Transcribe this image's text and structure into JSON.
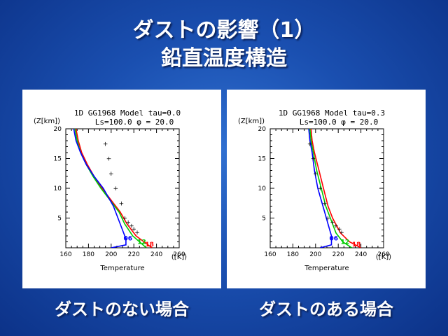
{
  "slide": {
    "title_line1": "ダストの影響（1）",
    "title_line2": "鉛直温度構造",
    "caption_left": "ダストのない場合",
    "caption_right": "ダストのある場合"
  },
  "colors": {
    "background": "#1a4fb0",
    "title": "#ffffff",
    "red": "#ff0000",
    "green": "#00cc00",
    "blue": "#0000ff",
    "marker": "#000000"
  },
  "chart_data": [
    {
      "type": "line",
      "title": "1D GG1968 Model tau=0.0",
      "subtitle": "Ls=100.0 φ = 20.0",
      "xlabel": "Temperature",
      "xunit": "([K])",
      "ylabel": "(Z[km])",
      "xlim": [
        160,
        260
      ],
      "ylim": [
        0,
        20
      ],
      "xticks": [
        "160",
        "180",
        "200",
        "220",
        "240",
        "260"
      ],
      "yticks": [
        "5",
        "10",
        "15",
        "20"
      ],
      "series": [
        {
          "name": "18",
          "color": "red",
          "points": [
            [
              236,
              0
            ],
            [
              222,
              2
            ],
            [
              214,
              4
            ],
            [
              208,
              6
            ],
            [
              200,
              8
            ],
            [
              192,
              10
            ],
            [
              185,
              12
            ],
            [
              179,
              14
            ],
            [
              174,
              16
            ],
            [
              171,
              18
            ],
            [
              169,
              20
            ]
          ]
        },
        {
          "name": "12",
          "color": "green",
          "points": [
            [
              231,
              0
            ],
            [
              219,
              2
            ],
            [
              212,
              4
            ],
            [
              207,
              6
            ],
            [
              199,
              8
            ],
            [
              191,
              10
            ],
            [
              184,
              12
            ],
            [
              178,
              14
            ],
            [
              173,
              16
            ],
            [
              170,
              18
            ],
            [
              168,
              20
            ]
          ]
        },
        {
          "name": "06",
          "color": "blue",
          "points": [
            [
              200,
              0
            ],
            [
              213,
              0.5
            ],
            [
              213,
              1.5
            ],
            [
              210,
              3
            ],
            [
              206,
              5
            ],
            [
              202,
              7
            ],
            [
              193,
              10
            ],
            [
              185,
              12
            ],
            [
              178,
              14
            ],
            [
              173,
              16
            ],
            [
              169,
              18
            ],
            [
              167,
              20
            ]
          ]
        }
      ],
      "markers": [
        [
          195,
          17.5
        ],
        [
          198,
          15
        ],
        [
          200,
          12.5
        ],
        [
          204,
          10
        ],
        [
          209,
          7.5
        ],
        [
          212,
          5.0
        ],
        [
          215,
          4.3
        ],
        [
          218,
          3.7
        ],
        [
          220,
          3.2
        ],
        [
          223,
          2.6
        ]
      ]
    },
    {
      "type": "line",
      "title": "1D GG1968 Model tau=0.3",
      "subtitle": "Ls=100.0 φ = 20.0",
      "xlabel": "Temperature",
      "xunit": "([K])",
      "ylabel": "(Z[km])",
      "xlim": [
        160,
        260
      ],
      "ylim": [
        0,
        20
      ],
      "xticks": [
        "160",
        "180",
        "200",
        "220",
        "240",
        "260"
      ],
      "yticks": [
        "5",
        "10",
        "15",
        "20"
      ],
      "series": [
        {
          "name": "18",
          "color": "red",
          "points": [
            [
              240,
              0
            ],
            [
              230,
              1
            ],
            [
              222,
              2.5
            ],
            [
              215,
              5
            ],
            [
              211,
              7
            ],
            [
              207,
              10
            ],
            [
              203,
              13
            ],
            [
              199,
              16
            ],
            [
              197,
              18
            ],
            [
              196,
              20
            ]
          ]
        },
        {
          "name": "12",
          "color": "green",
          "points": [
            [
              232,
              0
            ],
            [
              224,
              1
            ],
            [
              218,
              2.5
            ],
            [
              213,
              5
            ],
            [
              209,
              7
            ],
            [
              205,
              10
            ],
            [
              201,
              13
            ],
            [
              198,
              16
            ],
            [
              196,
              18
            ],
            [
              195,
              20
            ]
          ]
        },
        {
          "name": "06",
          "color": "blue",
          "points": [
            [
              204,
              0
            ],
            [
              214,
              0.5
            ],
            [
              214,
              2
            ],
            [
              211,
              4
            ],
            [
              208,
              6
            ],
            [
              205,
              8
            ],
            [
              202,
              10
            ],
            [
              199,
              13
            ],
            [
              197,
              16
            ],
            [
              195,
              18
            ],
            [
              194,
              20
            ]
          ]
        }
      ],
      "markers": [
        [
          195,
          17.5
        ],
        [
          198,
          15
        ],
        [
          200,
          12.5
        ],
        [
          204,
          10
        ],
        [
          208,
          7.5
        ],
        [
          211,
          5.0
        ],
        [
          215,
          4.3
        ],
        [
          218,
          3.7
        ],
        [
          221,
          3.2
        ],
        [
          223,
          2.6
        ]
      ]
    }
  ]
}
